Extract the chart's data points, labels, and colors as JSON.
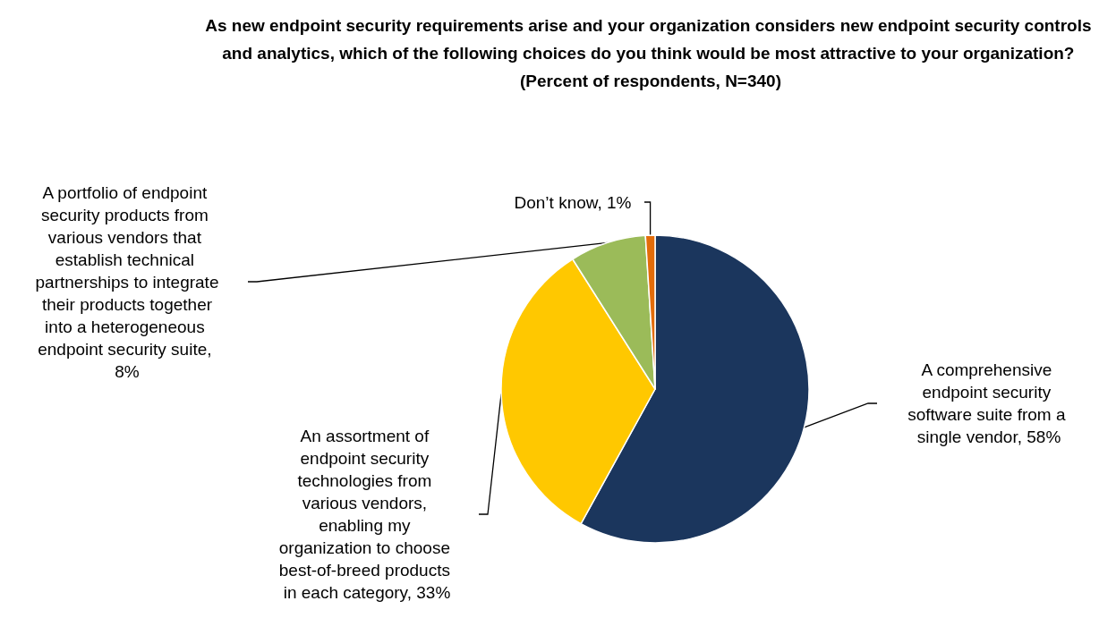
{
  "chart_data": {
    "type": "pie",
    "title": "As new endpoint security requirements arise and your organization considers new endpoint security controls and analytics, which of the following choices do you think would be most attractive to your organization? (Percent of respondents, N=340)",
    "categories": [
      "A comprehensive endpoint security software suite from a single vendor, 58%",
      "An assortment of endpoint security technologies from various vendors, enabling my organization to choose best-of-breed products in each category, 33%",
      "A portfolio of endpoint security products from various vendors that establish technical partnerships to integrate their products together into a heterogeneous endpoint security suite, 8%",
      "Don’t know, 1%"
    ],
    "values": [
      58,
      33,
      8,
      1
    ],
    "colors": [
      "#1b365d",
      "#ffc800",
      "#9bbb59",
      "#e36c0a"
    ]
  }
}
